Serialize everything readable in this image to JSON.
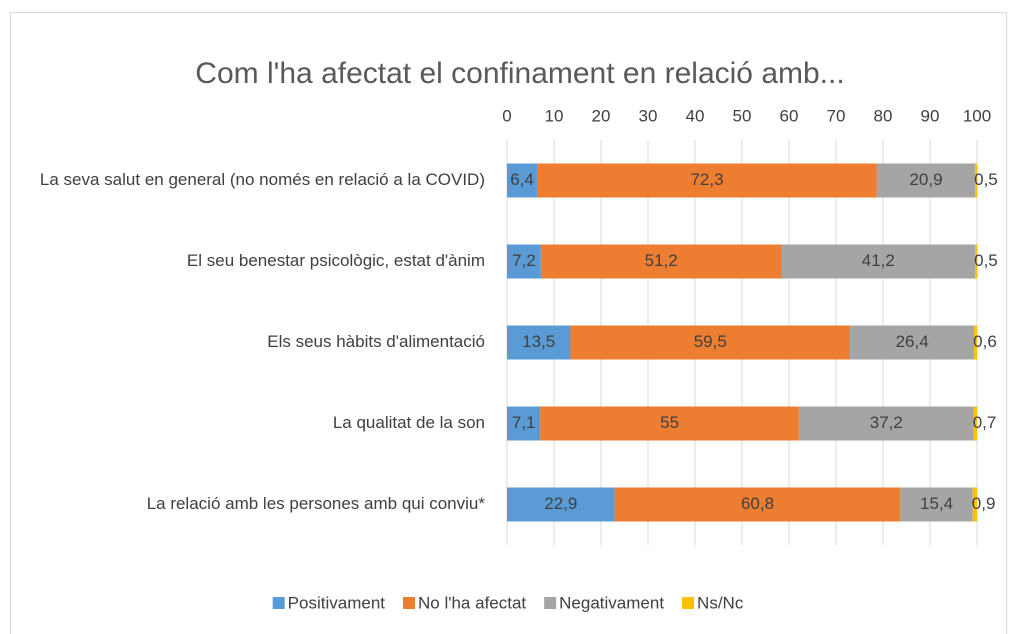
{
  "chart_data": {
    "type": "stacked_bar_horizontal",
    "title": "Com l'ha afectat el confinament en relació amb...",
    "categories": [
      "La seva salut en general (no només en relació a la COVID)",
      "El seu benestar psicològic, estat d'ànim",
      "Els seus hàbits d'alimentació",
      "La qualitat de la son",
      "La relació amb les persones amb qui conviu*"
    ],
    "series": [
      {
        "name": "Positivament",
        "color": "#5b9bd5",
        "values": [
          6.4,
          7.2,
          13.5,
          7.1,
          22.9
        ],
        "value_labels": [
          "6,4",
          "7,2",
          "13,5",
          "7,1",
          "22,9"
        ]
      },
      {
        "name": "No l'ha afectat",
        "color": "#ed7d31",
        "values": [
          72.3,
          51.2,
          59.5,
          55,
          60.8
        ],
        "value_labels": [
          "72,3",
          "51,2",
          "59,5",
          "55",
          "60,8"
        ]
      },
      {
        "name": "Negativament",
        "color": "#a5a5a5",
        "values": [
          20.9,
          41.2,
          26.4,
          37.2,
          15.4
        ],
        "value_labels": [
          "20,9",
          "41,2",
          "26,4",
          "37,2",
          "15,4"
        ]
      },
      {
        "name": "Ns/Nc",
        "color": "#ffc000",
        "values": [
          0.5,
          0.5,
          0.6,
          0.7,
          0.9
        ],
        "value_labels": [
          "0,5",
          "0,5",
          "0,6",
          "0,7",
          "0,9"
        ]
      }
    ],
    "xlim": [
      0,
      100
    ],
    "xticks": [
      0,
      10,
      20,
      30,
      40,
      50,
      60,
      70,
      80,
      90,
      100
    ],
    "grid": true,
    "legend": "bottom"
  }
}
